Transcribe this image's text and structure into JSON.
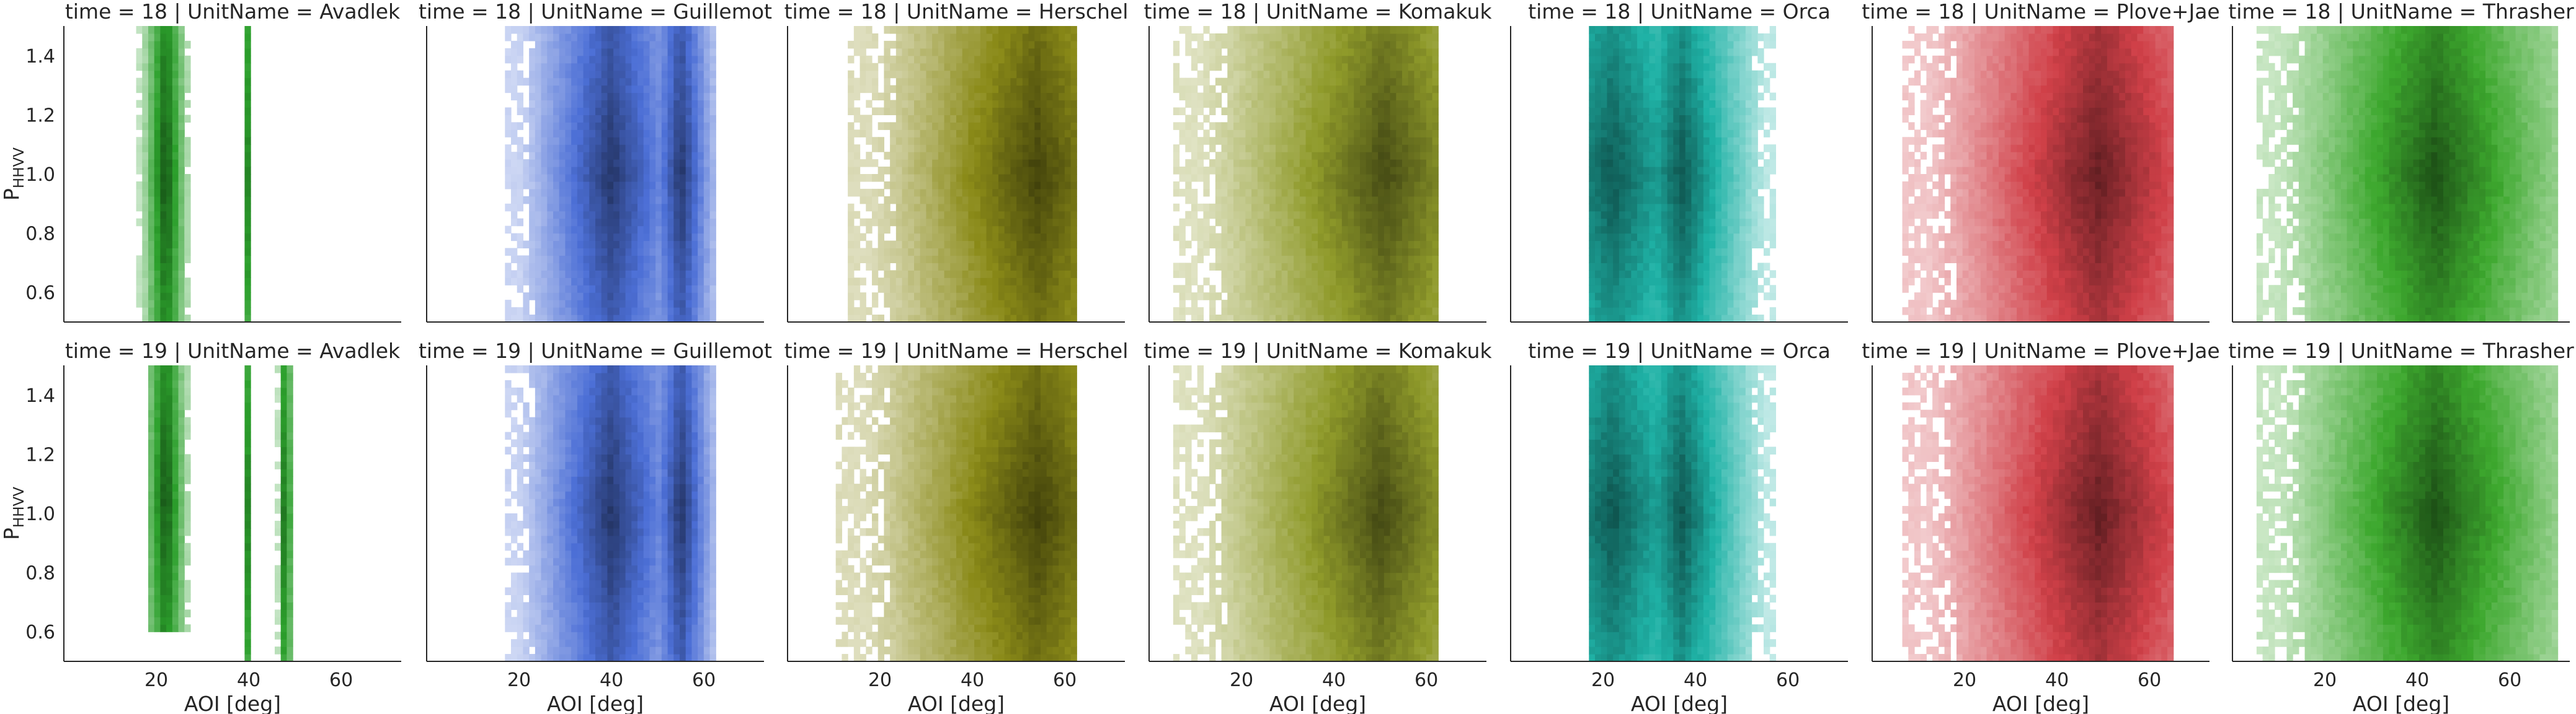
{
  "figure": {
    "x_label": "AOI [deg]",
    "y_label_main": "P",
    "y_label_sub": "HHVV"
  },
  "chart_data": {
    "type": "heatmap",
    "row_facet": "time",
    "col_facet": "UnitName",
    "rows": [
      18,
      19
    ],
    "columns": [
      "Avadlek",
      "Guillemot",
      "Herschel",
      "Komakuk",
      "Orca",
      "Plove+Jae",
      "Thrasher"
    ],
    "xlim": [
      0,
      73
    ],
    "ylim": [
      0.5,
      1.5
    ],
    "xticks": [
      20,
      40,
      60
    ],
    "yticks": [
      0.6,
      0.8,
      1.0,
      1.2,
      1.4
    ],
    "sharex": true,
    "sharey": true,
    "colors": {
      "Avadlek": "#2ca02c",
      "Guillemot": "#4c6fd6",
      "Herschel": "#8a8a18",
      "Komakuk": "#8f9a2a",
      "Orca": "#1fb2a6",
      "Plove+Jae": "#d04048",
      "Thrasher": "#3da82e"
    },
    "panels": [
      {
        "time": 18,
        "unit": "Avadlek",
        "title": "time = 18 | UnitName = Avadlek",
        "density": [
          {
            "x": [
              16,
              28
            ],
            "y": [
              0.5,
              1.5
            ],
            "peak": 22
          },
          {
            "x": [
              39,
              41
            ],
            "y": [
              0.5,
              1.5
            ],
            "peak": 40
          }
        ]
      },
      {
        "time": 18,
        "unit": "Guillemot",
        "title": "time = 18 | UnitName = Guillemot",
        "density": [
          {
            "x": [
              17,
              63
            ],
            "y": [
              0.5,
              1.5
            ],
            "peak": 40
          },
          {
            "x": [
              45,
              63
            ],
            "y": [
              0.5,
              1.5
            ],
            "peak": 55
          }
        ]
      },
      {
        "time": 18,
        "unit": "Herschel",
        "title": "time = 18 | UnitName = Herschel",
        "density": [
          {
            "x": [
              13,
              62
            ],
            "y": [
              0.5,
              1.5
            ],
            "peak": 54
          }
        ]
      },
      {
        "time": 18,
        "unit": "Komakuk",
        "title": "time = 18 | UnitName = Komakuk",
        "density": [
          {
            "x": [
              5,
              63
            ],
            "y": [
              0.5,
              1.5
            ],
            "peak": 51
          }
        ]
      },
      {
        "time": 18,
        "unit": "Orca",
        "title": "time = 18 | UnitName = Orca",
        "density": [
          {
            "x": [
              17,
              58
            ],
            "y": [
              0.5,
              1.5
            ],
            "peak": 22
          },
          {
            "x": [
              30,
              58
            ],
            "y": [
              0.5,
              1.5
            ],
            "peak": 37
          }
        ]
      },
      {
        "time": 18,
        "unit": "Plove+Jae",
        "title": "time = 18 | UnitName = Plove+Jae",
        "density": [
          {
            "x": [
              7,
              65
            ],
            "y": [
              0.5,
              1.5
            ],
            "peak": 49
          }
        ]
      },
      {
        "time": 18,
        "unit": "Thrasher",
        "title": "time = 18 | UnitName = Thrasher",
        "density": [
          {
            "x": [
              5,
              70
            ],
            "y": [
              0.5,
              1.5
            ],
            "peak": 44
          }
        ]
      },
      {
        "time": 19,
        "unit": "Avadlek",
        "title": "time = 19 | UnitName = Avadlek",
        "density": [
          {
            "x": [
              18,
              28
            ],
            "y": [
              0.6,
              1.5
            ],
            "peak": 22
          },
          {
            "x": [
              39,
              41
            ],
            "y": [
              0.5,
              1.5
            ],
            "peak": 40
          },
          {
            "x": [
              46,
              50
            ],
            "y": [
              0.5,
              1.5
            ],
            "peak": 48
          }
        ]
      },
      {
        "time": 19,
        "unit": "Guillemot",
        "title": "time = 19 | UnitName = Guillemot",
        "density": [
          {
            "x": [
              17,
              63
            ],
            "y": [
              0.5,
              1.5
            ],
            "peak": 40
          },
          {
            "x": [
              45,
              63
            ],
            "y": [
              0.5,
              1.5
            ],
            "peak": 55
          }
        ]
      },
      {
        "time": 19,
        "unit": "Herschel",
        "title": "time = 19 | UnitName = Herschel",
        "density": [
          {
            "x": [
              11,
              62
            ],
            "y": [
              0.5,
              1.5
            ],
            "peak": 54
          }
        ]
      },
      {
        "time": 19,
        "unit": "Komakuk",
        "title": "time = 19 | UnitName = Komakuk",
        "density": [
          {
            "x": [
              5,
              63
            ],
            "y": [
              0.5,
              1.5
            ],
            "peak": 50
          }
        ]
      },
      {
        "time": 19,
        "unit": "Orca",
        "title": "time = 19 | UnitName = Orca",
        "density": [
          {
            "x": [
              17,
              58
            ],
            "y": [
              0.5,
              1.5
            ],
            "peak": 22
          },
          {
            "x": [
              30,
              58
            ],
            "y": [
              0.5,
              1.5
            ],
            "peak": 37
          }
        ]
      },
      {
        "time": 19,
        "unit": "Plove+Jae",
        "title": "time = 19 | UnitName = Plove+Jae",
        "density": [
          {
            "x": [
              7,
              65
            ],
            "y": [
              0.5,
              1.5
            ],
            "peak": 49
          }
        ]
      },
      {
        "time": 19,
        "unit": "Thrasher",
        "title": "time = 19 | UnitName = Thrasher",
        "density": [
          {
            "x": [
              5,
              70
            ],
            "y": [
              0.5,
              1.5
            ],
            "peak": 44
          }
        ]
      }
    ]
  }
}
